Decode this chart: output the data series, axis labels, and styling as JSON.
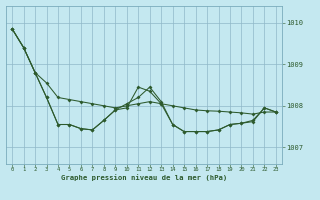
{
  "background_color": "#c4e8f0",
  "grid_color": "#90b8c8",
  "line_color": "#2d5a2d",
  "xlabel": "Graphe pression niveau de la mer (hPa)",
  "ylim": [
    1006.6,
    1010.4
  ],
  "yticks": [
    1007,
    1008,
    1009,
    1010
  ],
  "xlim": [
    -0.5,
    23.5
  ],
  "xticks": [
    0,
    1,
    2,
    3,
    4,
    5,
    6,
    7,
    8,
    9,
    10,
    11,
    12,
    13,
    14,
    15,
    16,
    17,
    18,
    19,
    20,
    21,
    22,
    23
  ],
  "s1": [
    1009.85,
    1009.4,
    1008.8,
    1008.55,
    1008.2,
    1008.15,
    1008.1,
    1008.05,
    1008.0,
    1007.95,
    1008.0,
    1008.05,
    1008.1,
    1008.05,
    1008.0,
    1007.95,
    1007.9,
    1007.88,
    1007.87,
    1007.85,
    1007.83,
    1007.8,
    1007.85,
    1007.85
  ],
  "s2": [
    1009.85,
    1009.4,
    1008.8,
    1008.2,
    1007.55,
    1007.55,
    1007.45,
    1007.42,
    1007.65,
    1007.9,
    1008.05,
    1008.2,
    1008.45,
    1008.1,
    1007.55,
    1007.38,
    1007.38,
    1007.38,
    1007.42,
    1007.55,
    1007.58,
    1007.62,
    1007.95,
    1007.85
  ],
  "s3": [
    1009.85,
    1009.4,
    1008.8,
    1008.2,
    1007.55,
    1007.55,
    1007.45,
    1007.42,
    1007.65,
    1007.9,
    1007.95,
    1008.45,
    1008.35,
    1008.05,
    1007.55,
    1007.38,
    1007.38,
    1007.38,
    1007.42,
    1007.55,
    1007.58,
    1007.65,
    1007.95,
    1007.85
  ]
}
